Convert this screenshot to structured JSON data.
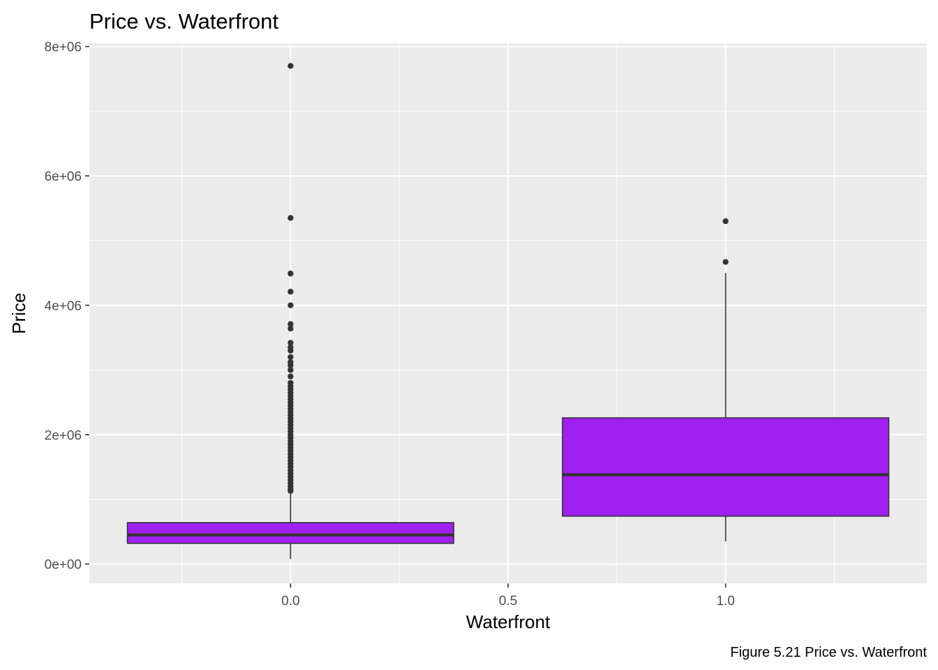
{
  "chart_data": {
    "type": "boxplot",
    "title": "Price vs. Waterfront",
    "xlabel": "Waterfront",
    "ylabel": "Price",
    "caption": "Figure 5.21 Price vs. Waterfront",
    "x_ticks": [
      "0.0",
      "0.5",
      "1.0"
    ],
    "y_ticks": [
      "0e+00",
      "2e+06",
      "4e+06",
      "6e+06",
      "8e+06"
    ],
    "xlim": [
      -0.4625,
      1.4625
    ],
    "ylim": [
      -300000,
      8050000
    ],
    "grid": true,
    "fill_color": "#a020f0",
    "panel_background": "#ebebeb",
    "boxes": [
      {
        "x": 0,
        "whisker_low": 78000,
        "q1": 320000,
        "median": 450000,
        "q3": 640000,
        "whisker_high": 1120000,
        "outliers": [
          1130000,
          1160000,
          1200000,
          1250000,
          1300000,
          1350000,
          1400000,
          1450000,
          1500000,
          1550000,
          1600000,
          1650000,
          1700000,
          1750000,
          1800000,
          1850000,
          1900000,
          1950000,
          2000000,
          2050000,
          2100000,
          2150000,
          2200000,
          2250000,
          2300000,
          2350000,
          2400000,
          2450000,
          2500000,
          2550000,
          2600000,
          2650000,
          2700000,
          2750000,
          2800000,
          2900000,
          3000000,
          3070000,
          3120000,
          3200000,
          3300000,
          3350000,
          3420000,
          3640000,
          3710000,
          4000000,
          4210000,
          4490000,
          5350000,
          7700000
        ]
      },
      {
        "x": 1,
        "whisker_low": 350000,
        "q1": 740000,
        "median": 1380000,
        "q3": 2260000,
        "whisker_high": 4500000,
        "outliers": [
          4670000,
          5300000
        ]
      }
    ]
  }
}
